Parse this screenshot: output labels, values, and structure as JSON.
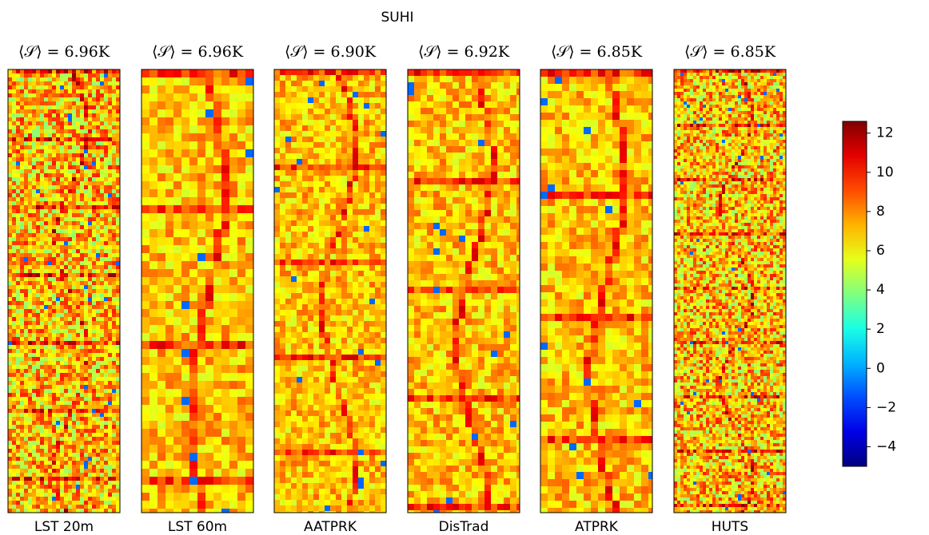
{
  "chart_data": {
    "type": "heatmap-grid",
    "title": "SUHI",
    "panels": [
      {
        "title": "⟨𝒮⟩ = 6.96K",
        "label": "LST 20m"
      },
      {
        "title": "⟨𝒮⟩ = 6.96K",
        "label": "LST 60m"
      },
      {
        "title": "⟨𝒮⟩ = 6.90K",
        "label": "AATPRK"
      },
      {
        "title": "⟨𝒮⟩ = 6.92K",
        "label": "DisTrad"
      },
      {
        "title": "⟨𝒮⟩ = 6.85K",
        "label": "ATPRK"
      },
      {
        "title": "⟨𝒮⟩ = 6.85K",
        "label": "HUTS"
      }
    ],
    "colorbar": {
      "colormap": "jet",
      "lim": [
        -5,
        12.6
      ],
      "ticks": [
        {
          "value": -4,
          "label": "−4"
        },
        {
          "value": -2,
          "label": "−2"
        },
        0,
        2,
        4,
        6,
        8,
        10,
        12
      ]
    }
  }
}
